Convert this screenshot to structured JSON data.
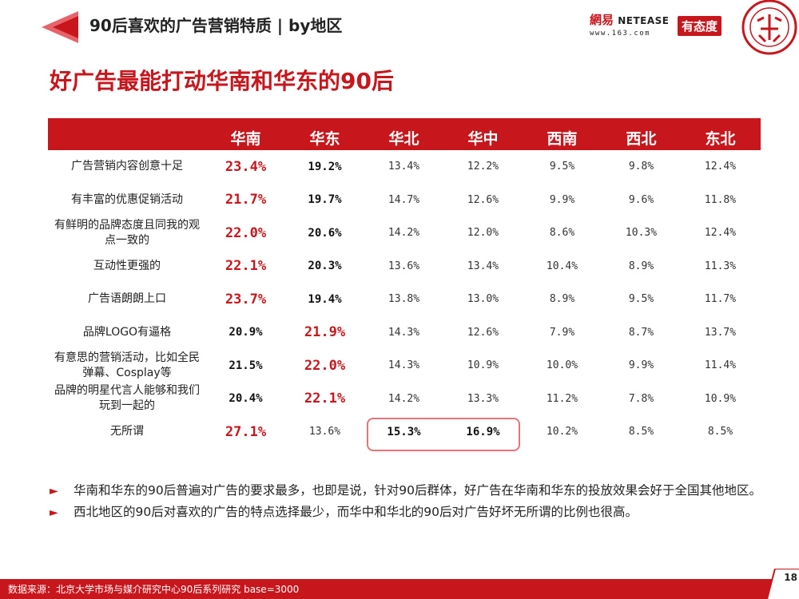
{
  "header": {
    "title": "90后喜欢的广告营销特质 | by地区",
    "brand_cn": "網易",
    "brand_en": "NETEASE",
    "brand_url": "www.163.com",
    "brand_tag": "有态度"
  },
  "main_title": "好广告最能打动华南和华东的90后",
  "table": {
    "columns": [
      "华南",
      "华东",
      "华北",
      "华中",
      "西南",
      "西北",
      "东北"
    ],
    "rows": [
      {
        "label": "广告营销内容创意十足",
        "values": [
          "23.4%",
          "19.2%",
          "13.4%",
          "12.2%",
          "9.5%",
          "9.8%",
          "12.4%"
        ]
      },
      {
        "label": "有丰富的优惠促销活动",
        "values": [
          "21.7%",
          "19.7%",
          "14.7%",
          "12.6%",
          "9.9%",
          "9.6%",
          "11.8%"
        ]
      },
      {
        "label": "有鲜明的品牌态度且同我的观点一致的",
        "values": [
          "22.0%",
          "20.6%",
          "14.2%",
          "12.0%",
          "8.6%",
          "10.3%",
          "12.4%"
        ]
      },
      {
        "label": "互动性更强的",
        "values": [
          "22.1%",
          "20.3%",
          "13.6%",
          "13.4%",
          "10.4%",
          "8.9%",
          "11.3%"
        ]
      },
      {
        "label": "广告语朗朗上口",
        "values": [
          "23.7%",
          "19.4%",
          "13.8%",
          "13.0%",
          "8.9%",
          "9.5%",
          "11.7%"
        ]
      },
      {
        "label": "品牌LOGO有逼格",
        "values": [
          "20.9%",
          "21.9%",
          "14.3%",
          "12.6%",
          "7.9%",
          "8.7%",
          "13.7%"
        ]
      },
      {
        "label": "有意思的营销活动，比如全民弹幕、Cosplay等",
        "values": [
          "21.5%",
          "22.0%",
          "14.3%",
          "10.9%",
          "10.0%",
          "9.9%",
          "11.4%"
        ]
      },
      {
        "label": "品牌的明星代言人能够和我们玩到一起的",
        "values": [
          "20.4%",
          "22.1%",
          "14.2%",
          "13.3%",
          "11.2%",
          "7.8%",
          "10.9%"
        ]
      },
      {
        "label": "无所谓",
        "values": [
          "27.1%",
          "13.6%",
          "15.3%",
          "16.9%",
          "10.2%",
          "8.5%",
          "8.5%"
        ]
      }
    ]
  },
  "bullets": [
    "华南和华东的90后普遍对广告的要求最多，也即是说，针对90后群体，好广告在华南和华东的投放效果会好于全国其他地区。",
    "西北地区的90后对喜欢的广告的特点选择最少，而华中和华北的90后对广告好坏无所谓的比例也很高。"
  ],
  "bullet_marker": "►",
  "footer": {
    "source": "数据来源：北京大学市场与媒介研究中心90后系列研究 base=3000",
    "page_number": "18"
  },
  "colors": {
    "accent": "#c8161d",
    "highlight_border": "#e8727a"
  }
}
